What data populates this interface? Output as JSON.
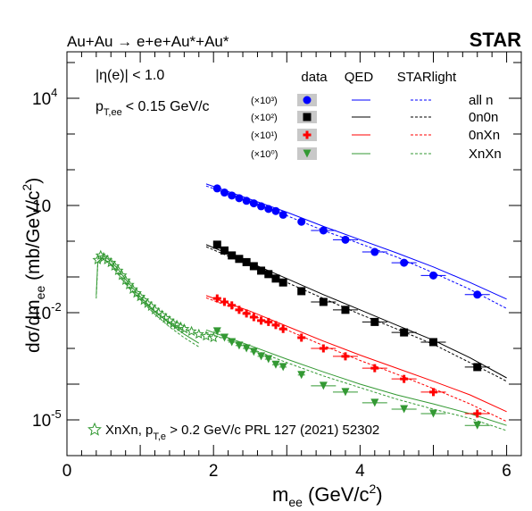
{
  "chart_data": {
    "type": "scatter",
    "title": "Au+Au → e+e+Au*+Au*",
    "experiment": "STAR",
    "cut_label": "|η(e)| < 1.0",
    "pt_cut_parts": {
      "p": "p",
      "sub": "T,ee",
      "rest": "< 0.15 GeV/c"
    },
    "xlabel_parts": {
      "main": "m",
      "sub": "ee",
      "rest": " (GeV/c",
      "sup": "2",
      "end": ")"
    },
    "ylabel": "dσ/dm_ee (mb/GeV/c²)",
    "xlim": [
      0,
      6.2
    ],
    "ylim_log10": [
      -6,
      5.3
    ],
    "y_scale": "log",
    "x_ticks": [
      "0",
      "2",
      "4",
      "6"
    ],
    "y_ticks": [
      {
        "base": "10",
        "exp": "4"
      },
      {
        "base": "10",
        "exp": ""
      },
      {
        "base": "10",
        "exp": "-2"
      },
      {
        "base": "10",
        "exp": "-5"
      }
    ],
    "legend_headers": {
      "data": "data",
      "qed": "QED",
      "starlight": "STARlight"
    },
    "legend_rows": [
      {
        "scale": "(×10³)",
        "label": "all n",
        "color": "#0000ff",
        "marker": "circle"
      },
      {
        "scale": "(×10²)",
        "label": "0n0n",
        "color": "#000000",
        "marker": "square"
      },
      {
        "scale": "(×10¹)",
        "label": "0nXn",
        "color": "#ff0000",
        "marker": "cross"
      },
      {
        "scale": "(×10⁰)",
        "label": "XnXn",
        "color": "#339933",
        "marker": "triangle-down"
      }
    ],
    "reference_label_parts": {
      "a": "XnXn, p",
      "sub": "T,e",
      "b": " > 0.2 GeV/c PRL 127 (2021) 52302"
    },
    "series": [
      {
        "name": "all n",
        "color": "#0000ff",
        "marker": "circle",
        "x": [
          2.05,
          2.15,
          2.25,
          2.35,
          2.45,
          2.55,
          2.65,
          2.75,
          2.85,
          2.95,
          3.2,
          3.5,
          3.8,
          4.2,
          4.6,
          5.0,
          5.6
        ],
        "y": [
          30.0,
          23.0,
          19.0,
          16.0,
          13.5,
          11.5,
          9.5,
          8.0,
          7.0,
          5.5,
          3.5,
          2.0,
          1.1,
          0.5,
          0.25,
          0.11,
          0.032
        ],
        "qed": [
          [
            1.9,
            40.0
          ],
          [
            2.5,
            15.0
          ],
          [
            3.0,
            6.5
          ],
          [
            3.5,
            2.6
          ],
          [
            4.0,
            1.1
          ],
          [
            4.5,
            0.47
          ],
          [
            5.0,
            0.19
          ],
          [
            5.5,
            0.07
          ],
          [
            6.0,
            0.024
          ]
        ],
        "starlight": [
          [
            1.9,
            35.0
          ],
          [
            2.5,
            13.0
          ],
          [
            3.0,
            5.2
          ],
          [
            3.5,
            2.0
          ],
          [
            4.0,
            0.85
          ],
          [
            4.5,
            0.36
          ],
          [
            5.0,
            0.13
          ],
          [
            5.5,
            0.045
          ],
          [
            6.0,
            0.013
          ]
        ]
      },
      {
        "name": "0n0n",
        "color": "#000000",
        "marker": "square",
        "x": [
          2.05,
          2.15,
          2.25,
          2.35,
          2.45,
          2.55,
          2.65,
          2.75,
          2.85,
          2.95,
          3.2,
          3.5,
          3.8,
          4.2,
          4.6,
          5.0,
          5.6
        ],
        "y": [
          0.8,
          0.55,
          0.4,
          0.32,
          0.26,
          0.2,
          0.15,
          0.12,
          0.09,
          0.07,
          0.04,
          0.02,
          0.012,
          0.0055,
          0.0028,
          0.0015,
          0.0003
        ],
        "qed": [
          [
            1.9,
            0.8
          ],
          [
            2.5,
            0.25
          ],
          [
            3.0,
            0.09
          ],
          [
            3.5,
            0.032
          ],
          [
            4.0,
            0.012
          ],
          [
            4.5,
            0.0045
          ],
          [
            5.0,
            0.0017
          ],
          [
            5.5,
            0.00055
          ],
          [
            6.0,
            0.00015
          ]
        ],
        "starlight": [
          [
            1.9,
            0.7
          ],
          [
            2.5,
            0.21
          ],
          [
            3.0,
            0.07
          ],
          [
            3.5,
            0.025
          ],
          [
            4.0,
            0.009
          ],
          [
            4.5,
            0.0035
          ],
          [
            5.0,
            0.0013
          ],
          [
            5.5,
            0.0004
          ],
          [
            6.0,
            0.00012
          ]
        ]
      },
      {
        "name": "0nXn",
        "color": "#ff0000",
        "marker": "cross",
        "x": [
          2.05,
          2.15,
          2.25,
          2.35,
          2.45,
          2.55,
          2.65,
          2.75,
          2.85,
          2.95,
          3.2,
          3.5,
          3.8,
          4.2,
          4.6,
          5.0,
          5.6
        ],
        "y": [
          0.025,
          0.02,
          0.016,
          0.012,
          0.0095,
          0.0075,
          0.006,
          0.0055,
          0.0045,
          0.0035,
          0.002,
          0.001,
          0.0006,
          0.00028,
          0.00014,
          6e-05,
          1.5e-05
        ],
        "qed": [
          [
            1.9,
            0.03
          ],
          [
            2.5,
            0.011
          ],
          [
            3.0,
            0.0042
          ],
          [
            3.5,
            0.0016
          ],
          [
            4.0,
            0.00065
          ],
          [
            4.5,
            0.00028
          ],
          [
            5.0,
            0.00012
          ],
          [
            5.5,
            5e-05
          ],
          [
            6.0,
            1.7e-05
          ]
        ],
        "starlight": [
          [
            1.9,
            0.026
          ],
          [
            2.5,
            0.009
          ],
          [
            3.0,
            0.0033
          ],
          [
            3.5,
            0.0012
          ],
          [
            4.0,
            0.00046
          ],
          [
            4.5,
            0.00019
          ],
          [
            5.0,
            7.5e-05
          ],
          [
            5.5,
            2.8e-05
          ],
          [
            6.0,
            9e-06
          ]
        ]
      },
      {
        "name": "XnXn",
        "color": "#339933",
        "marker": "triangle-down",
        "x": [
          2.05,
          2.15,
          2.25,
          2.35,
          2.45,
          2.55,
          2.65,
          2.75,
          2.85,
          2.95,
          3.2,
          3.5,
          3.8,
          4.2,
          4.6,
          5.0,
          5.6
        ],
        "y": [
          0.003,
          0.002,
          0.0015,
          0.0012,
          0.001,
          0.0008,
          0.0006,
          0.0005,
          0.00035,
          0.0003,
          0.00018,
          9e-05,
          6e-05,
          3e-05,
          2e-05,
          1.5e-05,
          7e-06
        ],
        "qed": [
          [
            1.9,
            0.0033
          ],
          [
            2.5,
            0.0012
          ],
          [
            3.0,
            0.0005
          ],
          [
            3.5,
            0.00022
          ],
          [
            4.0,
            0.0001
          ],
          [
            4.5,
            5e-05
          ],
          [
            5.0,
            2.8e-05
          ],
          [
            5.5,
            1.5e-05
          ],
          [
            6.0,
            7e-06
          ]
        ],
        "starlight": [
          [
            1.9,
            0.0028
          ],
          [
            2.5,
            0.001
          ],
          [
            3.0,
            0.0004
          ],
          [
            3.5,
            0.00017
          ],
          [
            4.0,
            8e-05
          ],
          [
            4.5,
            3.8e-05
          ],
          [
            5.0,
            2e-05
          ],
          [
            5.5,
            1.1e-05
          ],
          [
            6.0,
            5e-06
          ]
        ]
      },
      {
        "name": "XnXn, pT,e > 0.2 GeV/c PRL 127 (2021) 52302",
        "color": "#339933",
        "marker": "open-star",
        "x": [
          0.42,
          0.46,
          0.5,
          0.55,
          0.6,
          0.65,
          0.7,
          0.75,
          0.8,
          0.85,
          0.9,
          0.95,
          1.0,
          1.05,
          1.1,
          1.15,
          1.2,
          1.25,
          1.3,
          1.35,
          1.4,
          1.45,
          1.5,
          1.55,
          1.6,
          1.7,
          1.8,
          1.9,
          2.0
        ],
        "y": [
          0.3,
          0.4,
          0.35,
          0.3,
          0.25,
          0.2,
          0.15,
          0.11,
          0.08,
          0.06,
          0.045,
          0.035,
          0.028,
          0.022,
          0.018,
          0.015,
          0.012,
          0.01,
          0.0085,
          0.007,
          0.006,
          0.005,
          0.0045,
          0.004,
          0.0035,
          0.003,
          0.0025,
          0.0022,
          0.002
        ],
        "qed": [
          [
            0.4,
            0.03
          ],
          [
            0.42,
            0.26
          ],
          [
            0.5,
            0.38
          ],
          [
            0.6,
            0.28
          ],
          [
            0.7,
            0.16
          ],
          [
            0.8,
            0.085
          ],
          [
            0.9,
            0.048
          ],
          [
            1.0,
            0.028
          ],
          [
            1.2,
            0.011
          ],
          [
            1.4,
            0.005
          ],
          [
            1.6,
            0.0025
          ],
          [
            1.8,
            0.0014
          ]
        ],
        "starlight": [
          [
            0.4,
            0.025
          ],
          [
            0.42,
            0.22
          ],
          [
            0.5,
            0.32
          ],
          [
            0.6,
            0.23
          ],
          [
            0.7,
            0.13
          ],
          [
            0.8,
            0.07
          ],
          [
            0.9,
            0.04
          ],
          [
            1.0,
            0.023
          ],
          [
            1.2,
            0.009
          ],
          [
            1.4,
            0.004
          ],
          [
            1.6,
            0.002
          ],
          [
            1.8,
            0.0011
          ]
        ]
      }
    ]
  }
}
